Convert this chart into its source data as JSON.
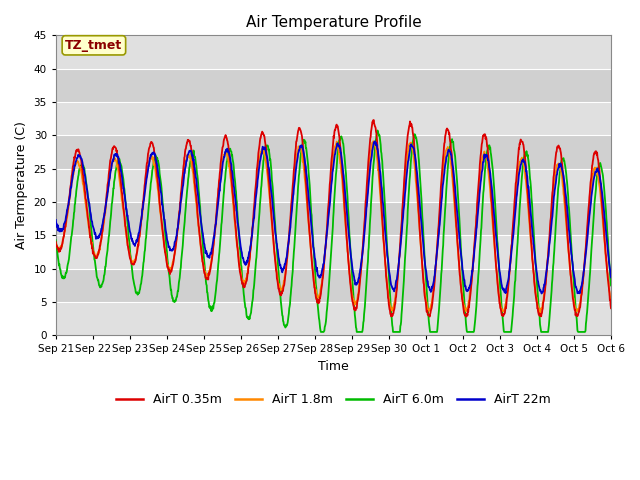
{
  "title": "Air Temperature Profile",
  "xlabel": "Time",
  "ylabel": "Air Termperature (C)",
  "ylim": [
    0,
    45
  ],
  "xlim_days": 15,
  "background_color": "#ffffff",
  "plot_bg_color_bands": [
    "#e8e8e8",
    "#d8d8d8"
  ],
  "grid_color": "#ffffff",
  "annotation_text": "TZ_tmet",
  "annotation_color": "#8B0000",
  "annotation_bg": "#ffffcc",
  "annotation_border": "#999900",
  "series_colors": {
    "AirT 0.35m": "#dd0000",
    "AirT 1.8m": "#ff8800",
    "AirT 6.0m": "#00bb00",
    "AirT 22m": "#0000cc"
  },
  "tick_labels": [
    "Sep 21",
    "Sep 22",
    "Sep 23",
    "Sep 24",
    "Sep 25",
    "Sep 26",
    "Sep 27",
    "Sep 28",
    "Sep 29",
    "Sep 30",
    "Oct 1",
    "Oct 2",
    "Oct 3",
    "Oct 4",
    "Oct 5",
    "Oct 6"
  ],
  "tick_positions": [
    0,
    1,
    2,
    3,
    4,
    5,
    6,
    7,
    8,
    9,
    10,
    11,
    12,
    13,
    14,
    15
  ],
  "legend_labels": [
    "AirT 0.35m",
    "AirT 1.8m",
    "AirT 6.0m",
    "AirT 22m"
  ]
}
